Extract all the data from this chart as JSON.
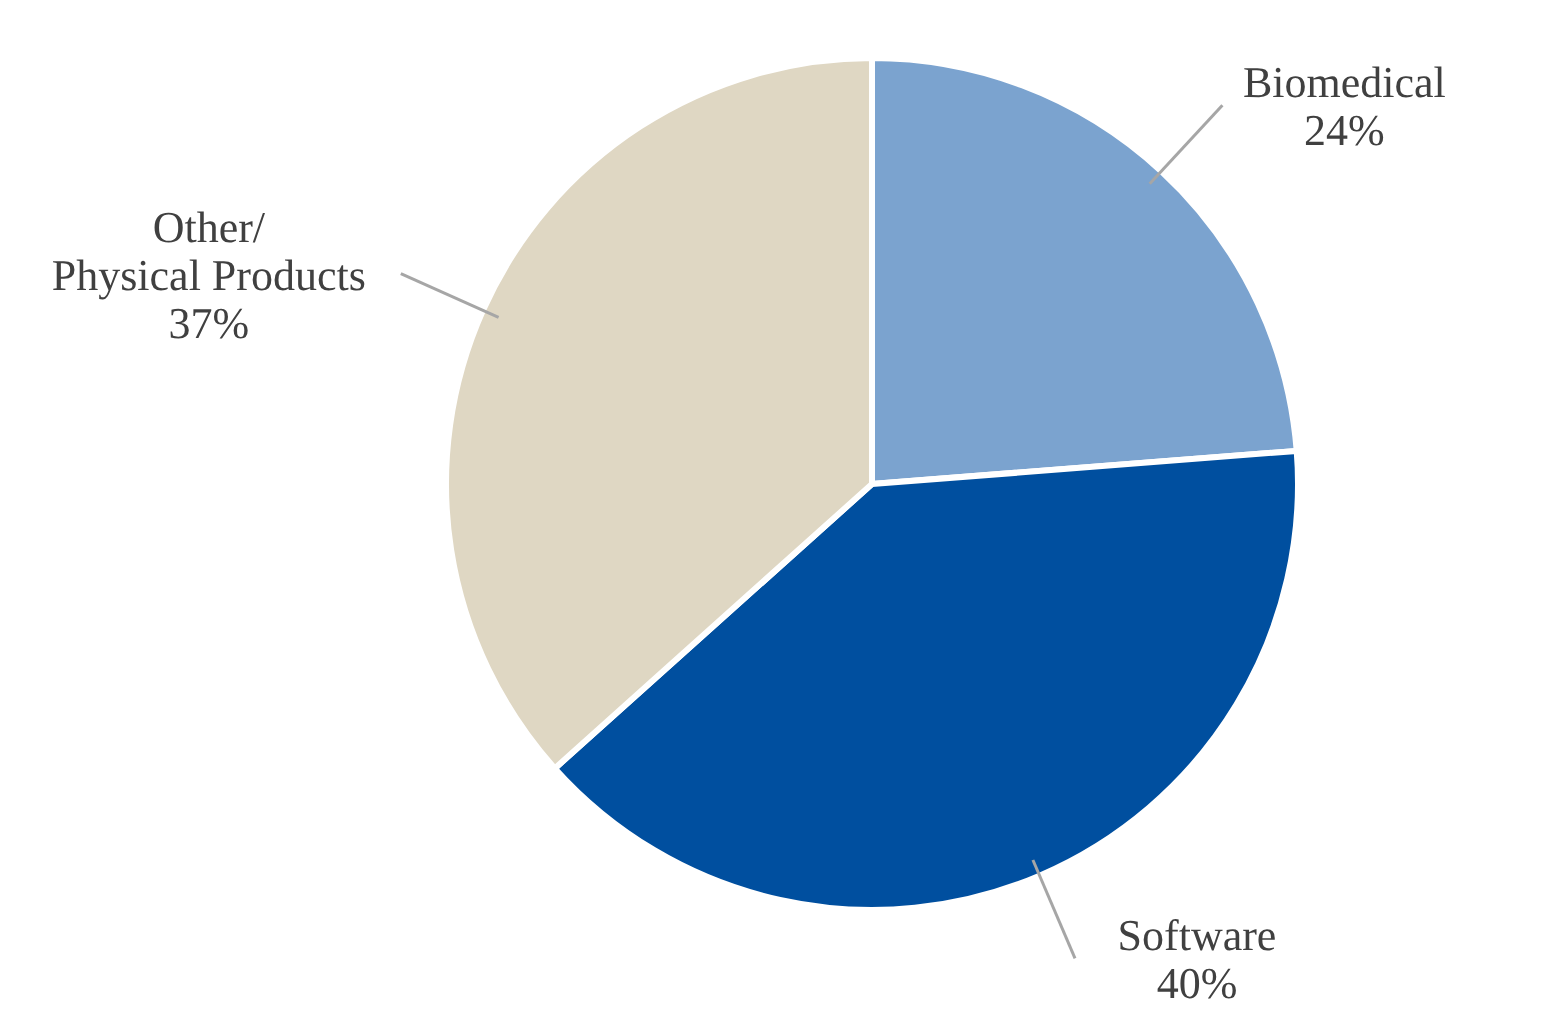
{
  "chart_data": {
    "type": "pie",
    "categories": [
      "Biomedical",
      "Software",
      "Other/\nPhysical Products"
    ],
    "values": [
      24,
      40,
      37
    ],
    "value_labels": [
      "24%",
      "40%",
      "37%"
    ],
    "colors": [
      "#7ba3cf",
      "#004f9f",
      "#dfd7c3"
    ],
    "legend": false
  }
}
